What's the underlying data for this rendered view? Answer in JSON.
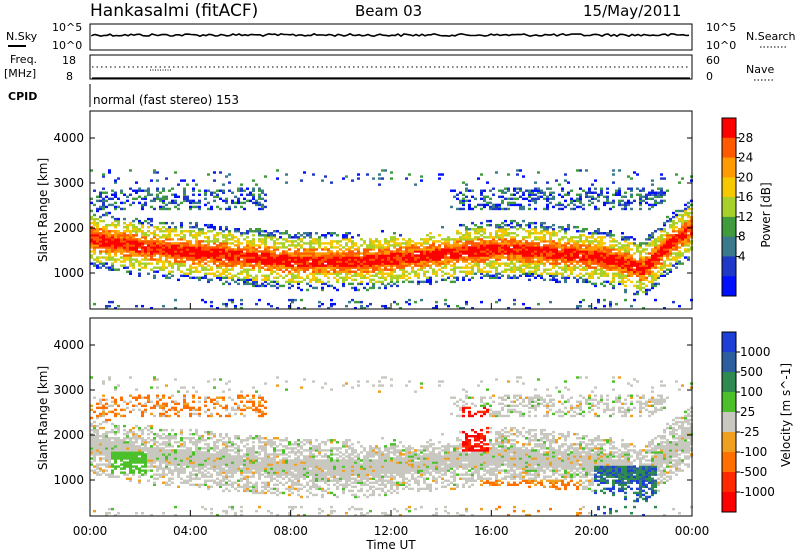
{
  "header": {
    "station": "Hankasalmi (fitACF)",
    "beam": "Beam 03",
    "date": "15/May/2011"
  },
  "sky_panel": {
    "left_label": "N.Sky",
    "left_ticks": [
      "10^5",
      "10^0"
    ],
    "right_label": "N.Search",
    "right_ticks": [
      "10^5",
      "10^0"
    ]
  },
  "freq_panel": {
    "left_label_1": "Freq.",
    "left_label_2": "[MHz]",
    "left_ticks": [
      "18",
      "8"
    ],
    "right_label": "Nave",
    "right_ticks": [
      "60",
      "0"
    ]
  },
  "cpid": {
    "label": "CPID",
    "text": "normal (fast stereo) 153"
  },
  "power_colorbar": {
    "title": "Power [dB]",
    "ticks": [
      "28",
      "24",
      "20",
      "16",
      "12",
      "8",
      "4"
    ],
    "colors": [
      "#ff0000",
      "#ff5a00",
      "#ff9a00",
      "#f5c800",
      "#a8d02a",
      "#3f9b3c",
      "#3a7a8c",
      "#2038c8",
      "#0010ff"
    ]
  },
  "velocity_colorbar": {
    "title": "Velocity [m s^-1]",
    "ticks": [
      "1000",
      "500",
      "100",
      "25",
      "-25",
      "-100",
      "-500",
      "-1000"
    ],
    "colors": [
      "#1c3fd6",
      "#2d5fa0",
      "#2e8a4e",
      "#4cc02a",
      "#c8c8c0",
      "#f0a020",
      "#ff7000",
      "#ff2800",
      "#ff0000"
    ]
  },
  "chart_data": [
    {
      "type": "heatmap",
      "name": "power",
      "ylabel": "Slant Range [km]",
      "ylim": [
        200,
        4600
      ],
      "yticks": [
        "4000",
        "3000",
        "2000",
        "1000"
      ],
      "xlim": [
        0,
        24
      ],
      "note_series": "main echo band (slant range in km) vs UT hours",
      "band": {
        "x": [
          0,
          1,
          2,
          3,
          4,
          5,
          6,
          7,
          8,
          9,
          10,
          11,
          12,
          13,
          14,
          15,
          16,
          17,
          18,
          19,
          20,
          21,
          22,
          23,
          24
        ],
        "y": [
          1750,
          1650,
          1550,
          1500,
          1450,
          1400,
          1350,
          1300,
          1250,
          1250,
          1250,
          1250,
          1300,
          1350,
          1400,
          1450,
          1500,
          1500,
          1450,
          1400,
          1350,
          1250,
          1050,
          1600,
          2000
        ]
      }
    },
    {
      "type": "heatmap",
      "name": "velocity",
      "ylabel": "Slant Range [km]",
      "ylim": [
        200,
        4600
      ],
      "yticks": [
        "4000",
        "3000",
        "2000",
        "1000"
      ],
      "xlim": [
        0,
        24
      ],
      "xlabel": "Time UT",
      "xticks": [
        "00:00",
        "04:00",
        "08:00",
        "12:00",
        "16:00",
        "20:00",
        "00:00"
      ]
    }
  ]
}
